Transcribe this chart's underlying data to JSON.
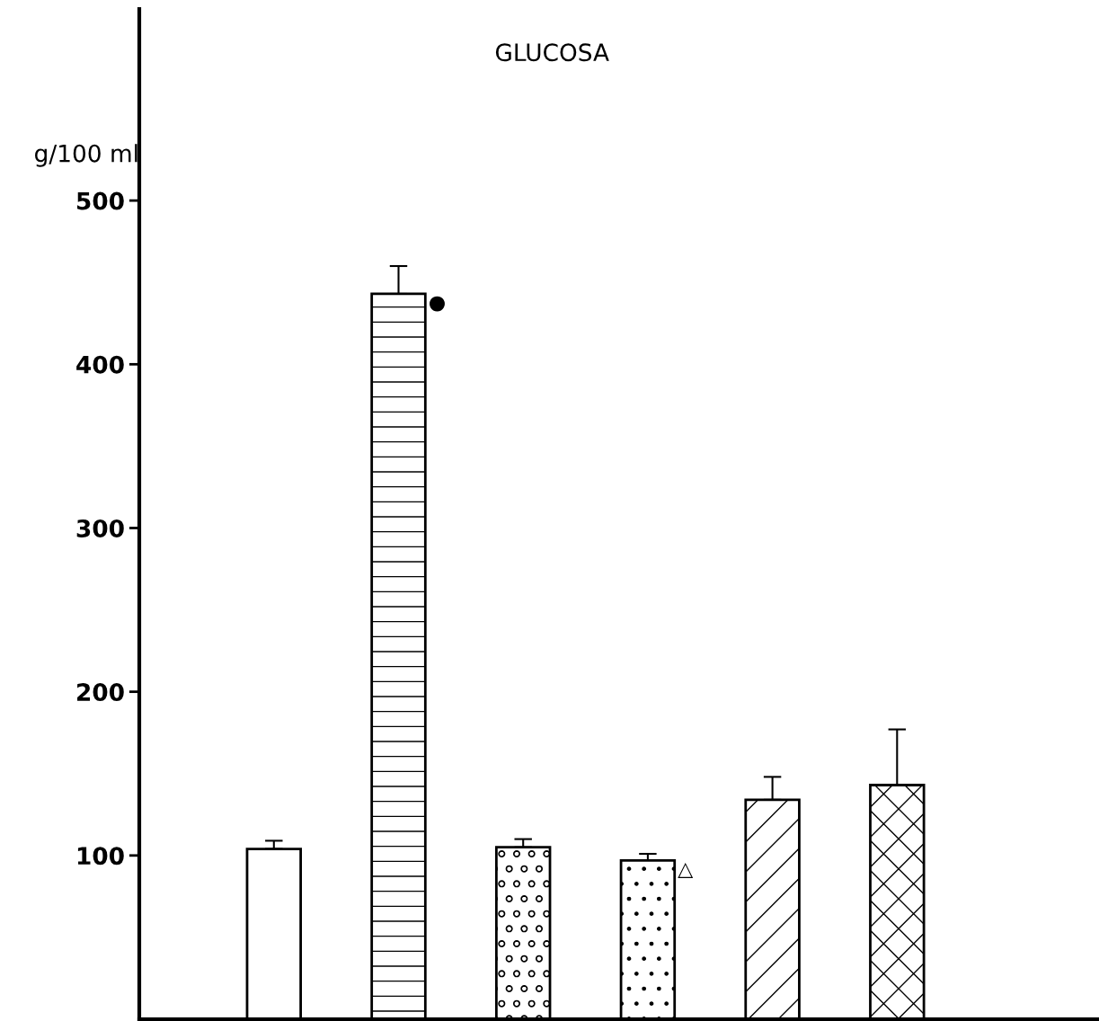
{
  "chart_data": {
    "type": "bar",
    "title": "GLUCOSA",
    "ylabel": "g/100 ml",
    "categories": [
      null,
      null,
      null,
      null,
      null,
      null
    ],
    "values": [
      104,
      443,
      105,
      97,
      134,
      143
    ],
    "errors": [
      [
        104,
        109
      ],
      [
        443,
        460
      ],
      [
        105,
        110
      ],
      [
        97,
        101
      ],
      [
        134,
        148
      ],
      [
        143,
        177
      ]
    ],
    "value_labels": [
      null,
      "●",
      null,
      "△",
      null,
      null
    ],
    "colors": [
      "#ffffff",
      "#ffffff",
      "#ffffff",
      "#ffffff",
      "#ffffff",
      "#ffffff"
    ],
    "ylim": [
      0,
      617
    ],
    "yticks": [
      100,
      200,
      300,
      400,
      500
    ],
    "grid": false,
    "legend": false
  }
}
